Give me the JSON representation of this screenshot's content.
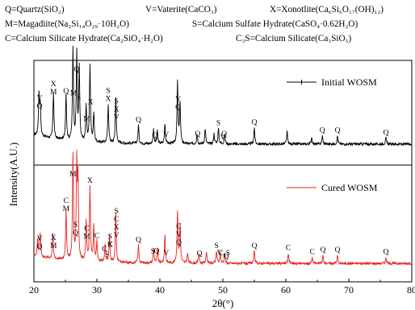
{
  "key_lines": [
    [
      {
        "abbr": "Q",
        "text": "Q=Quartz(SiO₂)"
      },
      {
        "abbr": "V",
        "text": "V=Vaterite(CaCO₃)"
      },
      {
        "abbr": "X",
        "text": "X=Xonotlite(Ca₆Si₆O₁₇(OH)₁₂)"
      }
    ],
    [
      {
        "abbr": "M",
        "text": "M=Magadiite(Na₂Si₁₄O₂₉·10H₂O)"
      },
      {
        "abbr": "S",
        "text": "S=Calcium Sulfate Hydrate(CaSO₄·0.62H₂O)"
      }
    ],
    [
      {
        "abbr": "C",
        "text": "C=Calcium Silicate Hydrate(Ca₂SiO₄·H₂O)"
      },
      {
        "abbr": "C3S",
        "text": "C₃S=Calcium Silicate(Ca₃SiO₅)"
      }
    ]
  ],
  "chart_data": {
    "type": "line",
    "xlabel": "2θ(°)",
    "ylabel": "Intensity(A.U.)",
    "xlim": [
      20,
      80
    ],
    "x_ticks": [
      "20",
      "30",
      "40",
      "50",
      "60",
      "70",
      "80"
    ],
    "grid": false,
    "series": [
      {
        "name": "Initial WOSM",
        "color": "#000000",
        "baseline": 0.18,
        "peaks": [
          [
            20.8,
            0.4
          ],
          [
            21.0,
            0.3
          ],
          [
            23.1,
            0.45
          ],
          [
            25.1,
            0.45
          ],
          [
            26.2,
            0.9
          ],
          [
            26.8,
            0.85
          ],
          [
            27.2,
            0.7
          ],
          [
            28.3,
            0.35
          ],
          [
            28.9,
            0.75
          ],
          [
            29.5,
            0.28
          ],
          [
            31.8,
            0.38
          ],
          [
            33.0,
            0.45
          ],
          [
            36.6,
            0.18
          ],
          [
            39.0,
            0.14
          ],
          [
            39.6,
            0.12
          ],
          [
            40.8,
            0.2
          ],
          [
            42.8,
            0.6
          ],
          [
            43.2,
            0.4
          ],
          [
            45.9,
            0.1
          ],
          [
            47.2,
            0.15
          ],
          [
            48.6,
            0.1
          ],
          [
            49.3,
            0.15
          ],
          [
            50.3,
            0.1
          ],
          [
            55.0,
            0.16
          ],
          [
            60.2,
            0.12
          ],
          [
            64.1,
            0.07
          ],
          [
            65.8,
            0.08
          ],
          [
            68.2,
            0.08
          ],
          [
            75.9,
            0.06
          ]
        ]
      },
      {
        "name": "Cured WOSM",
        "color": "#e8231f",
        "baseline": 0.16,
        "peaks": [
          [
            20.6,
            0.18
          ],
          [
            21.0,
            0.22
          ],
          [
            23.0,
            0.26
          ],
          [
            25.1,
            0.48
          ],
          [
            26.2,
            1.05
          ],
          [
            26.8,
            0.95
          ],
          [
            27.0,
            0.78
          ],
          [
            28.3,
            0.4
          ],
          [
            28.9,
            0.75
          ],
          [
            29.5,
            0.35
          ],
          [
            30.0,
            0.2
          ],
          [
            31.3,
            0.18
          ],
          [
            32.0,
            0.28
          ],
          [
            33.0,
            0.5
          ],
          [
            36.6,
            0.18
          ],
          [
            39.0,
            0.14
          ],
          [
            39.6,
            0.14
          ],
          [
            40.8,
            0.28
          ],
          [
            42.8,
            0.52
          ],
          [
            43.2,
            0.38
          ],
          [
            44.4,
            0.1
          ],
          [
            46.2,
            0.1
          ],
          [
            47.4,
            0.12
          ],
          [
            49.0,
            0.12
          ],
          [
            49.6,
            0.1
          ],
          [
            50.3,
            0.1
          ],
          [
            55.0,
            0.12
          ],
          [
            60.4,
            0.1
          ],
          [
            64.2,
            0.06
          ],
          [
            65.9,
            0.08
          ],
          [
            68.2,
            0.08
          ],
          [
            75.9,
            0.06
          ]
        ]
      }
    ],
    "legend": [
      {
        "label": "Initial WOSM",
        "color": "#000000",
        "placement": "top-right"
      },
      {
        "label": "Cured WOSM",
        "color": "#e8231f",
        "placement": "top-right"
      }
    ],
    "annotations": {
      "top": [
        {
          "x": 20.9,
          "labels": [
            "V",
            "Q"
          ]
        },
        {
          "x": 23.1,
          "labels": [
            "X",
            "M"
          ]
        },
        {
          "x": 25.1,
          "labels": [
            "Q"
          ]
        },
        {
          "x": 26.3,
          "labels": [
            "M"
          ]
        },
        {
          "x": 26.8,
          "labels": [
            "Q"
          ]
        },
        {
          "x": 27.1,
          "labels": [
            "S"
          ]
        },
        {
          "x": 28.4,
          "labels": [
            "M"
          ]
        },
        {
          "x": 29.0,
          "labels": [
            "X"
          ]
        },
        {
          "x": 31.8,
          "labels": [
            "S",
            "X"
          ]
        },
        {
          "x": 33.1,
          "labels": [
            "S",
            "X",
            "V"
          ]
        },
        {
          "x": 36.6,
          "labels": [
            "Q"
          ]
        },
        {
          "x": 39.2,
          "labels": [
            "Q"
          ]
        },
        {
          "x": 41.0,
          "labels": [
            "V"
          ]
        },
        {
          "x": 42.9,
          "labels": [
            "V",
            "Q"
          ]
        },
        {
          "x": 46.0,
          "labels": [
            "Q"
          ]
        },
        {
          "x": 49.3,
          "labels": [
            "S"
          ]
        },
        {
          "x": 50.0,
          "labels": [
            "V"
          ]
        },
        {
          "x": 50.2,
          "labels": [
            "Q"
          ]
        },
        {
          "x": 55.0,
          "labels": [
            "Q"
          ]
        },
        {
          "x": 65.8,
          "labels": [
            "Q"
          ]
        },
        {
          "x": 68.2,
          "labels": [
            "Q"
          ]
        },
        {
          "x": 75.9,
          "labels": [
            "Q"
          ]
        }
      ],
      "bottom": [
        {
          "x": 20.9,
          "labels": [
            "V",
            "Q"
          ]
        },
        {
          "x": 23.1,
          "labels": [
            "X",
            "M"
          ]
        },
        {
          "x": 25.1,
          "labels": [
            "C",
            "M"
          ]
        },
        {
          "x": 26.2,
          "labels": [
            "M"
          ]
        },
        {
          "x": 26.6,
          "labels": [
            "S",
            "Q"
          ]
        },
        {
          "x": 28.4,
          "labels": [
            "C",
            "M"
          ]
        },
        {
          "x": 28.9,
          "labels": [
            "X"
          ]
        },
        {
          "x": 30.0,
          "labels": [
            "C"
          ]
        },
        {
          "x": 31.2,
          "labels": [
            "C"
          ]
        },
        {
          "x": 31.6,
          "labels": [
            "S"
          ]
        },
        {
          "x": 32.1,
          "labels": [
            "X"
          ]
        },
        {
          "x": 32.1,
          "labels": [
            "S",
            "C"
          ]
        },
        {
          "x": 33.1,
          "labels": [
            "S",
            "C",
            "X",
            "V"
          ]
        },
        {
          "x": 36.6,
          "labels": [
            "Q"
          ]
        },
        {
          "x": 38.9,
          "labels": [
            "S"
          ]
        },
        {
          "x": 39.5,
          "labels": [
            "Q"
          ]
        },
        {
          "x": 41.0,
          "labels": [
            "V"
          ]
        },
        {
          "x": 43.0,
          "labels": [
            "C",
            "V",
            "Q"
          ]
        },
        {
          "x": 46.3,
          "labels": [
            "Q"
          ]
        },
        {
          "x": 49.0,
          "labels": [
            "S"
          ]
        },
        {
          "x": 49.5,
          "labels": [
            "V"
          ]
        },
        {
          "x": 50.2,
          "labels": [
            "C₃S"
          ]
        },
        {
          "x": 50.5,
          "labels": [
            "Q"
          ]
        },
        {
          "x": 55.0,
          "labels": [
            "Q"
          ]
        },
        {
          "x": 60.4,
          "labels": [
            "C"
          ]
        },
        {
          "x": 64.2,
          "labels": [
            "C"
          ]
        },
        {
          "x": 65.9,
          "labels": [
            "Q"
          ]
        },
        {
          "x": 68.2,
          "labels": [
            "Q"
          ]
        },
        {
          "x": 75.9,
          "labels": [
            "Q"
          ]
        }
      ]
    }
  }
}
